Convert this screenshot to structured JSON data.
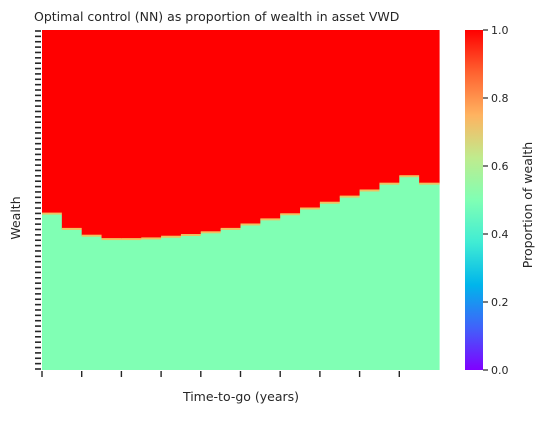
{
  "chart_data": {
    "type": "heatmap",
    "title": "Optimal control (NN) as proportion of wealth in asset VWD",
    "xlabel": "Time-to-go (years)",
    "ylabel": "Wealth",
    "x_tick_labels": [],
    "y_tick_labels": [],
    "colorbar": {
      "label": "Proportion of wealth",
      "colormap": "rainbow",
      "range": [
        0.0,
        1.0
      ],
      "ticks": [
        "0.0",
        "0.2",
        "0.4",
        "0.6",
        "0.8",
        "1.0"
      ]
    },
    "regions": {
      "high_wealth_value": 1.0,
      "low_wealth_value": 0.5
    },
    "boundary": {
      "description_units": "fraction of wealth axis height from bottom",
      "x_columns": 20,
      "level_from_bottom": [
        0.46,
        0.415,
        0.395,
        0.385,
        0.385,
        0.387,
        0.392,
        0.397,
        0.405,
        0.415,
        0.428,
        0.443,
        0.458,
        0.475,
        0.492,
        0.51,
        0.528,
        0.548,
        0.57,
        0.548
      ]
    },
    "colors": {
      "high": "#ff0000",
      "low": "#80ffb4",
      "boundary_blend": "#f2c060"
    }
  }
}
